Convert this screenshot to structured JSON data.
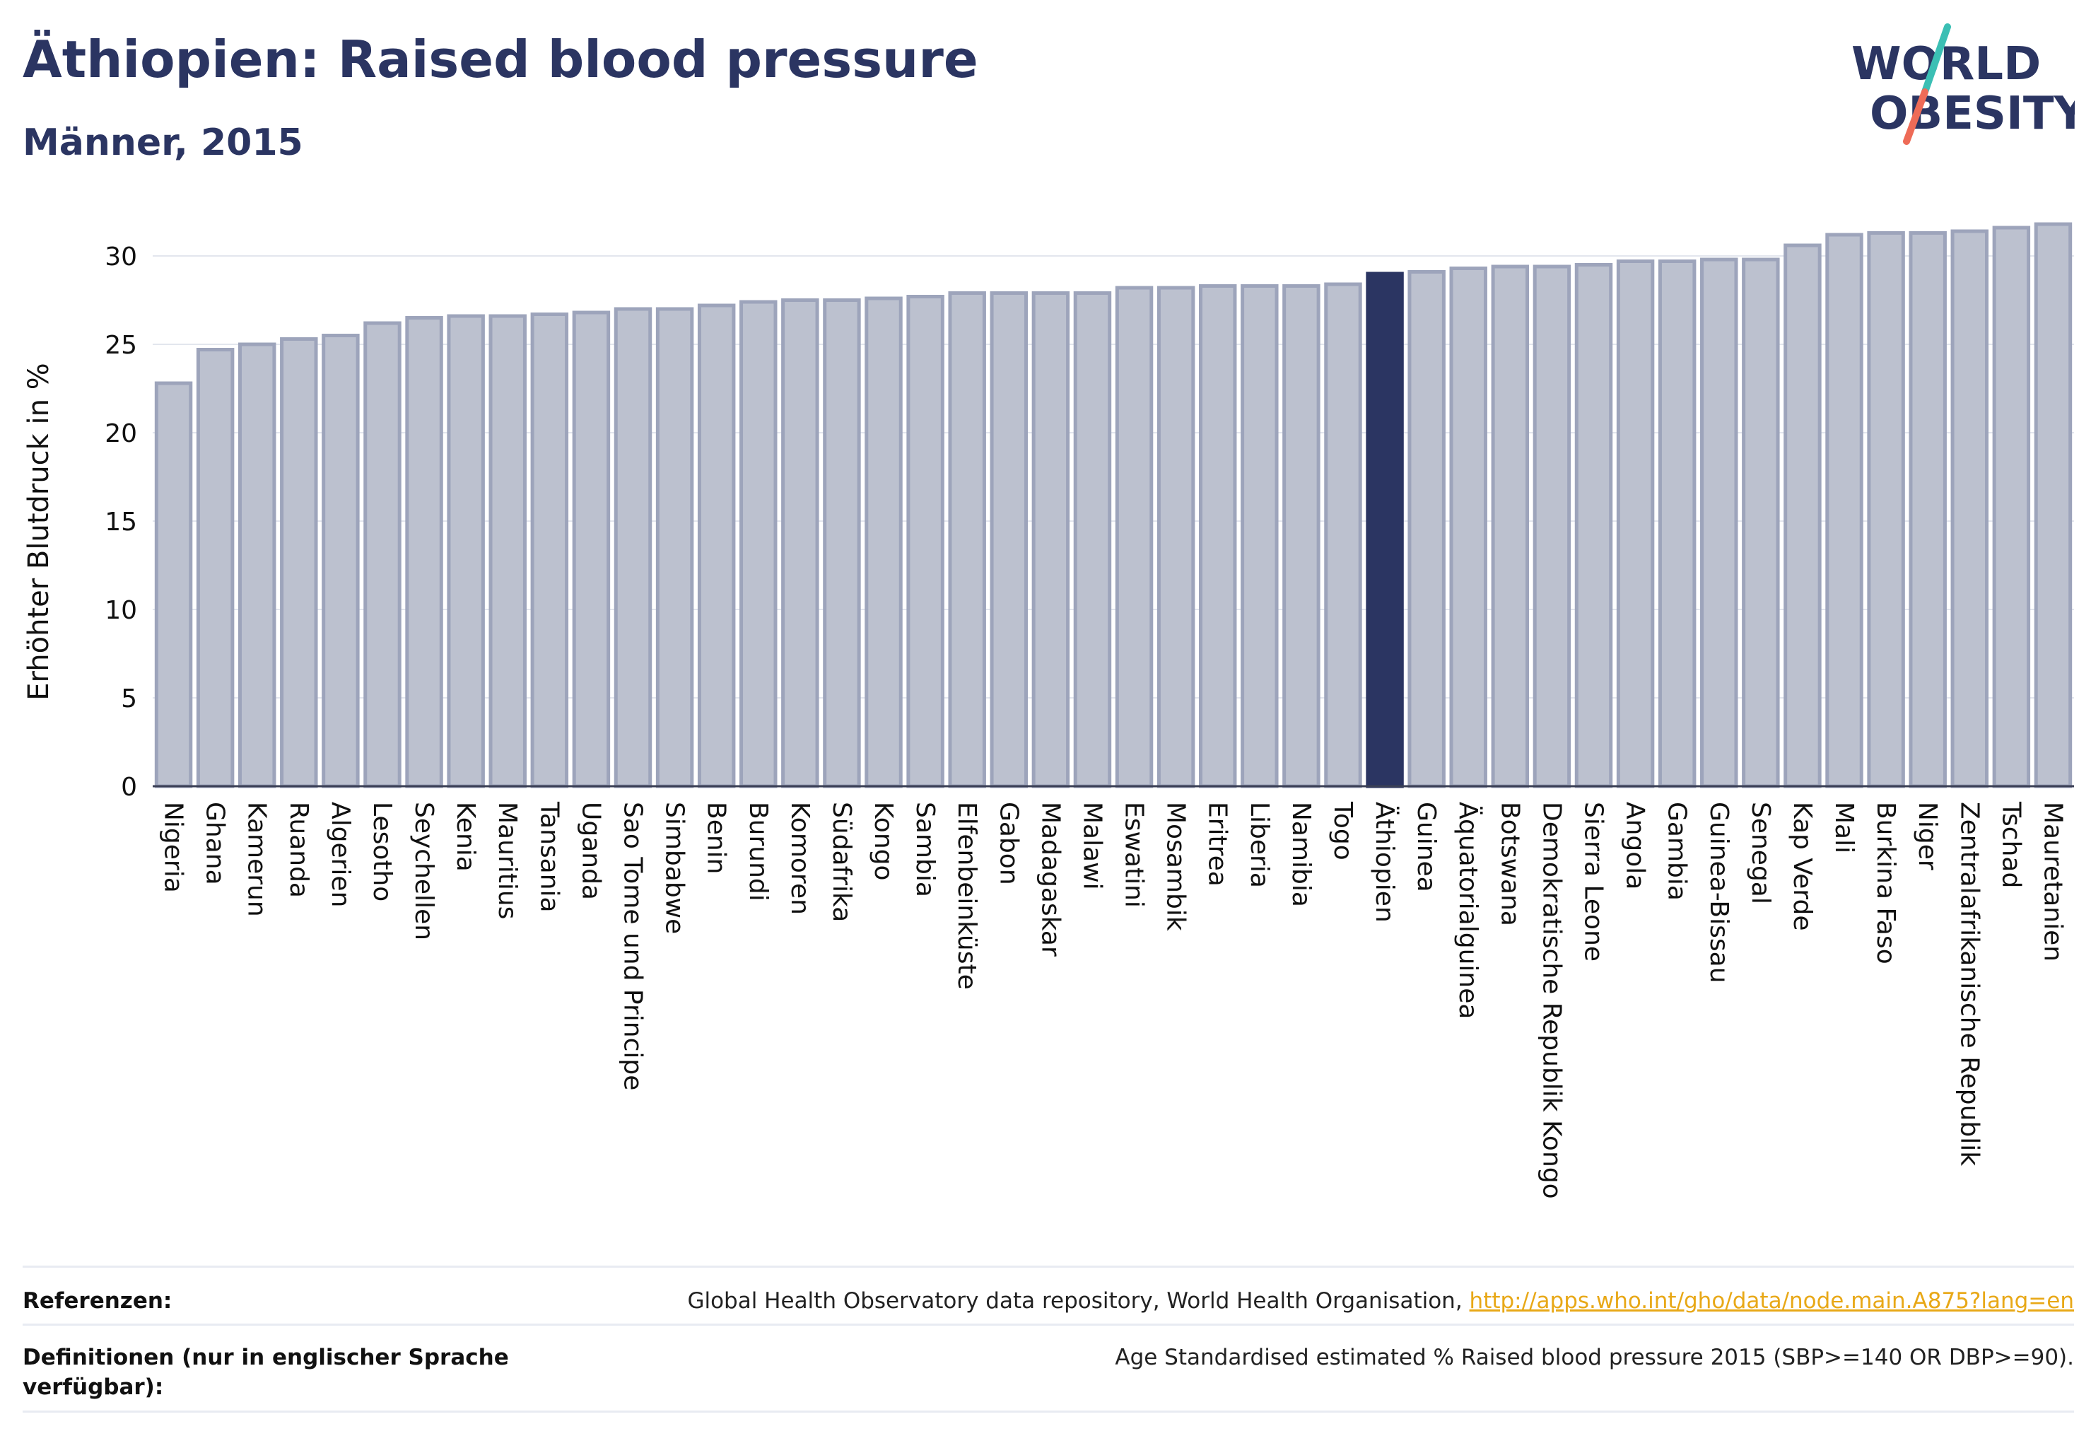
{
  "header": {
    "title": "Äthiopien: Raised blood pressure",
    "subtitle": "Männer, 2015"
  },
  "logo": {
    "line1": "WORLD",
    "line2": "OBESITY"
  },
  "colors": {
    "bar": "#bcc1cf",
    "bar_stroke": "#9da4bb",
    "highlight": "#2b3562",
    "title": "#2b3562",
    "grid": "#e3e6ee",
    "link": "#e8a817",
    "logo_teal": "#3bbfb4",
    "logo_coral": "#ee6b57"
  },
  "chart_data": {
    "type": "bar",
    "title": "Äthiopien: Raised blood pressure",
    "subtitle": "Männer, 2015",
    "xlabel": "",
    "ylabel": "Erhöhter Blutdruck in %",
    "ylim": [
      0,
      32
    ],
    "yticks": [
      0,
      5,
      10,
      15,
      20,
      25,
      30
    ],
    "grid": true,
    "highlight": "Äthiopien",
    "categories": [
      "Nigeria",
      "Ghana",
      "Kamerun",
      "Ruanda",
      "Algerien",
      "Lesotho",
      "Seychellen",
      "Kenia",
      "Mauritius",
      "Tansania",
      "Uganda",
      "Sao Tome und Principe",
      "Simbabwe",
      "Benin",
      "Burundi",
      "Komoren",
      "Südafrika",
      "Kongo",
      "Sambia",
      "Elfenbeinküste",
      "Gabon",
      "Madagaskar",
      "Malawi",
      "Eswatini",
      "Mosambik",
      "Eritrea",
      "Liberia",
      "Namibia",
      "Togo",
      "Äthiopien",
      "Guinea",
      "Äquatorialguinea",
      "Botswana",
      "Demokratische Republik Kongo",
      "Sierra Leone",
      "Angola",
      "Gambia",
      "Guinea-Bissau",
      "Senegal",
      "Kap Verde",
      "Mali",
      "Burkina Faso",
      "Niger",
      "Zentralafrikanische Republik",
      "Tschad",
      "Mauretanien"
    ],
    "values": [
      22.8,
      24.7,
      25.0,
      25.3,
      25.5,
      26.2,
      26.5,
      26.6,
      26.6,
      26.7,
      26.8,
      27.0,
      27.0,
      27.2,
      27.4,
      27.5,
      27.5,
      27.6,
      27.7,
      27.9,
      27.9,
      27.9,
      27.9,
      28.2,
      28.2,
      28.3,
      28.3,
      28.3,
      28.4,
      29.0,
      29.1,
      29.3,
      29.4,
      29.4,
      29.5,
      29.7,
      29.7,
      29.8,
      29.8,
      30.6,
      31.2,
      31.3,
      31.3,
      31.4,
      31.6,
      31.8
    ]
  },
  "footer": {
    "references_label": "Referenzen:",
    "references_text": "Global Health Observatory data repository, World Health Organisation, ",
    "references_link": "http://apps.who.int/gho/data/node.main.A875?lang=en",
    "definitions_label": "Definitionen (nur in englischer Sprache verfügbar):",
    "definitions_text": "Age Standardised estimated % Raised blood pressure 2015 (SBP>=140 OR DBP>=90)."
  }
}
